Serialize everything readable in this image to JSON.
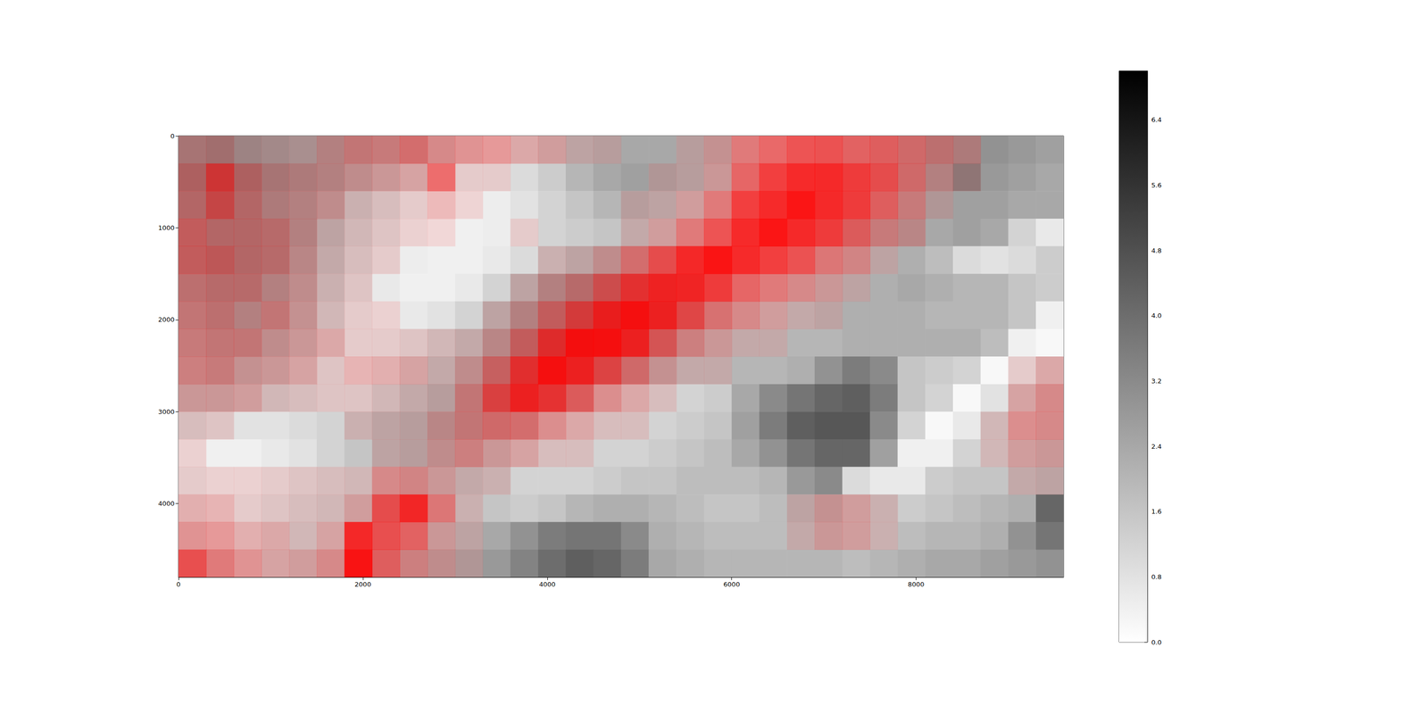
{
  "chart_data": {
    "type": "heatmap",
    "x": [
      150,
      450,
      750,
      1050,
      1350,
      1650,
      1950,
      2250,
      2550,
      2850,
      3150,
      3450,
      3750,
      4050,
      4350,
      4650,
      4950,
      5250,
      5550,
      5850,
      6150,
      6450,
      6750,
      7050,
      7350,
      7650,
      7950,
      8250,
      8550,
      8850,
      9150,
      9450
    ],
    "y": [
      150,
      450,
      750,
      1050,
      1350,
      1650,
      1950,
      2250,
      2550,
      2850,
      3150,
      3450,
      3750,
      4050,
      4350,
      4650
    ],
    "xlim": [
      0,
      9600
    ],
    "ylim": [
      0,
      4800
    ],
    "xticks": [
      0,
      2000,
      4000,
      6000,
      8000
    ],
    "yticks": [
      0,
      1000,
      2000,
      3000,
      4000
    ],
    "cells": [
      [
        3.0,
        3.2,
        3.0,
        2.8,
        2.6,
        2.6,
        2.4,
        2.2,
        2.0,
        1.6,
        1.2,
        1.0,
        1.2,
        1.6,
        2.0,
        2.2,
        2.4,
        2.4,
        2.2,
        2.0,
        1.4,
        1.2,
        1.2,
        1.4,
        1.6,
        1.8,
        2.2,
        2.6,
        2.8,
        3.0,
        2.8,
        2.6
      ],
      [
        3.2,
        3.4,
        3.2,
        3.0,
        2.8,
        2.6,
        2.2,
        1.8,
        1.4,
        1.0,
        0.8,
        0.8,
        1.0,
        1.4,
        2.0,
        2.4,
        2.6,
        2.4,
        2.2,
        1.8,
        1.4,
        1.2,
        1.2,
        1.4,
        1.6,
        1.8,
        2.2,
        2.6,
        3.4,
        2.8,
        2.6,
        2.4
      ],
      [
        3.0,
        3.2,
        3.0,
        2.8,
        2.6,
        2.2,
        1.6,
        1.2,
        0.8,
        0.6,
        0.5,
        0.5,
        0.8,
        1.2,
        1.6,
        2.0,
        2.2,
        2.0,
        1.6,
        1.4,
        1.2,
        1.2,
        1.2,
        1.4,
        1.6,
        1.8,
        2.2,
        2.4,
        2.6,
        2.6,
        2.4,
        2.4
      ],
      [
        2.8,
        3.0,
        3.0,
        2.8,
        2.6,
        2.0,
        1.4,
        1.0,
        0.6,
        0.4,
        0.4,
        0.5,
        0.8,
        1.2,
        1.4,
        1.6,
        1.8,
        1.6,
        1.4,
        1.2,
        1.2,
        1.2,
        1.4,
        1.6,
        2.0,
        2.2,
        2.4,
        2.4,
        2.6,
        2.4,
        1.2,
        0.6
      ],
      [
        2.8,
        3.0,
        3.0,
        2.8,
        2.4,
        1.8,
        1.2,
        0.8,
        0.5,
        0.4,
        0.4,
        0.6,
        1.0,
        1.6,
        2.0,
        2.2,
        2.0,
        1.8,
        1.6,
        1.4,
        1.2,
        1.2,
        1.4,
        1.6,
        1.8,
        2.0,
        2.2,
        1.8,
        1.0,
        0.8,
        1.0,
        1.4
      ],
      [
        2.6,
        2.8,
        2.8,
        2.6,
        2.2,
        1.6,
        1.0,
        0.6,
        0.4,
        0.4,
        0.6,
        1.2,
        2.0,
        2.6,
        2.8,
        2.8,
        2.6,
        2.4,
        2.0,
        1.6,
        1.4,
        1.4,
        1.6,
        1.8,
        2.0,
        2.2,
        2.4,
        2.2,
        2.0,
        2.0,
        1.6,
        1.4
      ],
      [
        2.4,
        2.6,
        2.6,
        2.4,
        2.0,
        1.4,
        0.8,
        0.6,
        0.6,
        0.8,
        1.2,
        2.0,
        2.6,
        2.8,
        3.0,
        3.0,
        2.8,
        2.6,
        2.2,
        1.8,
        1.6,
        1.6,
        1.8,
        2.0,
        2.2,
        2.2,
        2.2,
        2.0,
        2.0,
        2.0,
        1.6,
        0.4
      ],
      [
        2.2,
        2.4,
        2.4,
        2.2,
        1.8,
        1.2,
        0.8,
        0.8,
        1.0,
        1.4,
        1.8,
        2.4,
        2.8,
        3.0,
        3.0,
        2.8,
        2.6,
        2.4,
        2.0,
        1.8,
        1.8,
        1.8,
        2.0,
        2.0,
        2.2,
        2.2,
        2.2,
        2.2,
        2.2,
        1.8,
        0.4,
        0.2
      ],
      [
        2.0,
        2.2,
        2.0,
        1.8,
        1.4,
        1.0,
        0.8,
        1.0,
        1.4,
        1.8,
        2.2,
        2.6,
        2.8,
        2.8,
        2.6,
        2.4,
        2.2,
        2.0,
        1.8,
        1.8,
        2.0,
        2.0,
        2.2,
        3.0,
        3.6,
        3.2,
        1.6,
        1.4,
        1.2,
        0.2,
        0.8,
        1.2
      ],
      [
        1.8,
        1.8,
        1.6,
        1.4,
        1.2,
        1.0,
        1.0,
        1.4,
        1.8,
        2.2,
        2.4,
        2.6,
        2.6,
        2.4,
        2.0,
        1.4,
        1.2,
        1.2,
        1.2,
        1.4,
        2.4,
        3.2,
        3.8,
        4.2,
        4.4,
        3.6,
        1.6,
        1.2,
        0.2,
        0.8,
        1.4,
        1.6
      ],
      [
        1.2,
        1.0,
        0.8,
        0.8,
        1.0,
        1.2,
        1.6,
        2.0,
        2.2,
        2.4,
        2.4,
        2.2,
        2.0,
        1.4,
        1.2,
        1.2,
        1.2,
        1.2,
        1.4,
        1.6,
        2.6,
        3.6,
        4.4,
        4.6,
        4.6,
        3.2,
        1.2,
        0.2,
        0.6,
        1.4,
        1.4,
        1.6
      ],
      [
        0.6,
        0.4,
        0.4,
        0.6,
        0.8,
        1.2,
        1.6,
        2.0,
        2.2,
        2.2,
        2.0,
        1.8,
        1.4,
        1.2,
        1.2,
        1.2,
        1.2,
        1.4,
        1.6,
        1.8,
        2.4,
        3.0,
        3.8,
        4.2,
        4.2,
        2.6,
        0.4,
        0.4,
        1.2,
        1.4,
        1.6,
        1.8
      ],
      [
        0.8,
        0.6,
        0.6,
        0.8,
        1.0,
        1.2,
        1.4,
        1.6,
        1.8,
        1.8,
        1.8,
        1.6,
        1.2,
        1.2,
        1.2,
        1.4,
        1.6,
        1.6,
        1.8,
        1.8,
        1.8,
        2.0,
        2.8,
        3.2,
        1.0,
        0.6,
        0.6,
        1.4,
        1.6,
        1.6,
        1.8,
        2.0
      ],
      [
        1.0,
        0.8,
        0.8,
        1.0,
        1.2,
        1.4,
        1.6,
        1.8,
        1.8,
        1.6,
        1.6,
        1.6,
        1.4,
        1.6,
        2.0,
        2.2,
        2.2,
        2.0,
        1.8,
        1.6,
        1.6,
        1.8,
        2.0,
        2.0,
        1.6,
        1.6,
        1.4,
        1.6,
        1.8,
        2.0,
        2.2,
        4.2
      ],
      [
        1.2,
        1.0,
        1.0,
        1.2,
        1.4,
        1.4,
        1.6,
        1.6,
        1.6,
        1.8,
        2.0,
        2.4,
        3.0,
        3.6,
        3.8,
        3.8,
        3.2,
        2.2,
        2.0,
        1.8,
        1.8,
        1.8,
        1.8,
        1.8,
        1.6,
        1.6,
        1.8,
        2.0,
        2.0,
        2.2,
        3.0,
        3.8
      ],
      [
        1.6,
        1.4,
        1.2,
        1.4,
        1.6,
        1.6,
        1.8,
        1.8,
        2.0,
        2.2,
        2.4,
        2.8,
        3.4,
        4.0,
        4.4,
        4.2,
        3.6,
        2.4,
        2.2,
        2.0,
        2.0,
        2.0,
        2.0,
        2.0,
        1.8,
        2.0,
        2.2,
        2.4,
        2.4,
        2.6,
        2.8,
        3.0
      ]
    ],
    "overlay": {
      "color": "#ff0000",
      "values": [
        [
          0.2,
          0.2,
          0.1,
          0.1,
          0.1,
          0.2,
          0.3,
          0.3,
          0.4,
          0.3,
          0.3,
          0.3,
          0.2,
          0.2,
          0.1,
          0.1,
          0,
          0,
          0.1,
          0.2,
          0.4,
          0.5,
          0.6,
          0.6,
          0.5,
          0.5,
          0.4,
          0.3,
          0.2,
          0,
          0,
          0
        ],
        [
          0.3,
          0.6,
          0.3,
          0.2,
          0.2,
          0.2,
          0.2,
          0.2,
          0.2,
          0.5,
          0.1,
          0.1,
          0,
          0,
          0,
          0,
          0,
          0.1,
          0.1,
          0.2,
          0.5,
          0.7,
          0.8,
          0.8,
          0.7,
          0.6,
          0.4,
          0.2,
          0.1,
          0,
          0,
          0
        ],
        [
          0.3,
          0.5,
          0.3,
          0.2,
          0.2,
          0.2,
          0.1,
          0.1,
          0.1,
          0.2,
          0.1,
          0,
          0,
          0,
          0,
          0,
          0.1,
          0.1,
          0.2,
          0.4,
          0.7,
          0.8,
          0.9,
          0.8,
          0.7,
          0.5,
          0.3,
          0.1,
          0,
          0,
          0,
          0
        ],
        [
          0.4,
          0.3,
          0.3,
          0.3,
          0.2,
          0.1,
          0.1,
          0.1,
          0.1,
          0.1,
          0,
          0,
          0.1,
          0,
          0,
          0,
          0.1,
          0.2,
          0.4,
          0.6,
          0.8,
          0.9,
          0.8,
          0.7,
          0.5,
          0.3,
          0.2,
          0,
          0,
          0,
          0,
          0
        ],
        [
          0.4,
          0.4,
          0.3,
          0.3,
          0.2,
          0.1,
          0.1,
          0.1,
          0,
          0,
          0,
          0,
          0,
          0.1,
          0.1,
          0.2,
          0.4,
          0.6,
          0.8,
          0.9,
          0.8,
          0.7,
          0.6,
          0.4,
          0.3,
          0.1,
          0,
          0,
          0,
          0,
          0,
          0
        ],
        [
          0.3,
          0.3,
          0.3,
          0.2,
          0.2,
          0.1,
          0.1,
          0,
          0,
          0,
          0,
          0,
          0.1,
          0.2,
          0.3,
          0.5,
          0.7,
          0.8,
          0.8,
          0.7,
          0.5,
          0.4,
          0.3,
          0.2,
          0.1,
          0,
          0,
          0,
          0,
          0,
          0,
          0
        ],
        [
          0.3,
          0.3,
          0.2,
          0.3,
          0.2,
          0.1,
          0.1,
          0.1,
          0,
          0,
          0,
          0.1,
          0.2,
          0.4,
          0.6,
          0.8,
          0.9,
          0.8,
          0.6,
          0.4,
          0.3,
          0.2,
          0.1,
          0.1,
          0,
          0,
          0,
          0,
          0,
          0,
          0,
          0
        ],
        [
          0.3,
          0.3,
          0.3,
          0.2,
          0.2,
          0.2,
          0.1,
          0.1,
          0.1,
          0.1,
          0.1,
          0.2,
          0.4,
          0.7,
          0.9,
          0.9,
          0.8,
          0.5,
          0.3,
          0.2,
          0.1,
          0.1,
          0,
          0,
          0,
          0,
          0,
          0,
          0,
          0,
          0,
          0
        ],
        [
          0.3,
          0.3,
          0.2,
          0.2,
          0.2,
          0.1,
          0.2,
          0.2,
          0.2,
          0.1,
          0.2,
          0.4,
          0.7,
          0.9,
          0.8,
          0.6,
          0.4,
          0.2,
          0.1,
          0.1,
          0,
          0,
          0,
          0,
          0,
          0,
          0,
          0,
          0,
          0,
          0.1,
          0.2
        ],
        [
          0.2,
          0.2,
          0.2,
          0.1,
          0.1,
          0.1,
          0.1,
          0.1,
          0.1,
          0.1,
          0.3,
          0.6,
          0.8,
          0.7,
          0.5,
          0.3,
          0.2,
          0.1,
          0,
          0,
          0,
          0,
          0,
          0,
          0,
          0,
          0,
          0,
          0,
          0,
          0.2,
          0.3
        ],
        [
          0.1,
          0.1,
          0,
          0,
          0,
          0,
          0.1,
          0.1,
          0.1,
          0.2,
          0.3,
          0.4,
          0.4,
          0.3,
          0.2,
          0.1,
          0.1,
          0,
          0,
          0,
          0,
          0,
          0,
          0,
          0,
          0,
          0,
          0,
          0,
          0.1,
          0.3,
          0.3
        ],
        [
          0.1,
          0,
          0,
          0,
          0,
          0,
          0,
          0.1,
          0.1,
          0.2,
          0.3,
          0.2,
          0.2,
          0.1,
          0.1,
          0,
          0,
          0,
          0,
          0,
          0,
          0,
          0,
          0,
          0,
          0,
          0,
          0,
          0,
          0.1,
          0.2,
          0.2
        ],
        [
          0.1,
          0.1,
          0.1,
          0.1,
          0.1,
          0.1,
          0.1,
          0.3,
          0.3,
          0.2,
          0.1,
          0.1,
          0,
          0,
          0,
          0,
          0,
          0,
          0,
          0,
          0,
          0,
          0,
          0,
          0,
          0,
          0,
          0,
          0,
          0,
          0.1,
          0.1
        ],
        [
          0.2,
          0.2,
          0.1,
          0.1,
          0.1,
          0.1,
          0.2,
          0.6,
          0.8,
          0.4,
          0.1,
          0,
          0,
          0,
          0,
          0,
          0,
          0,
          0,
          0,
          0,
          0,
          0.1,
          0.2,
          0.2,
          0.1,
          0,
          0,
          0,
          0,
          0,
          0
        ],
        [
          0.3,
          0.3,
          0.2,
          0.2,
          0.1,
          0.2,
          0.8,
          0.6,
          0.5,
          0.2,
          0.1,
          0,
          0,
          0,
          0,
          0,
          0,
          0,
          0,
          0,
          0,
          0,
          0.1,
          0.2,
          0.2,
          0.1,
          0,
          0,
          0,
          0,
          0,
          0
        ],
        [
          0.6,
          0.4,
          0.3,
          0.2,
          0.2,
          0.3,
          0.9,
          0.5,
          0.3,
          0.2,
          0.1,
          0,
          0,
          0,
          0,
          0,
          0,
          0,
          0,
          0,
          0,
          0,
          0,
          0,
          0,
          0,
          0,
          0,
          0,
          0,
          0,
          0
        ]
      ]
    },
    "colorbar": {
      "range": [
        0,
        7.0
      ],
      "ticks": [
        {
          "value": 0,
          "label": "0.0"
        },
        0.8,
        1.6,
        2.4,
        3.2,
        {
          "value": 4,
          "label": "4.0"
        },
        4.8,
        5.6,
        6.4
      ]
    }
  }
}
